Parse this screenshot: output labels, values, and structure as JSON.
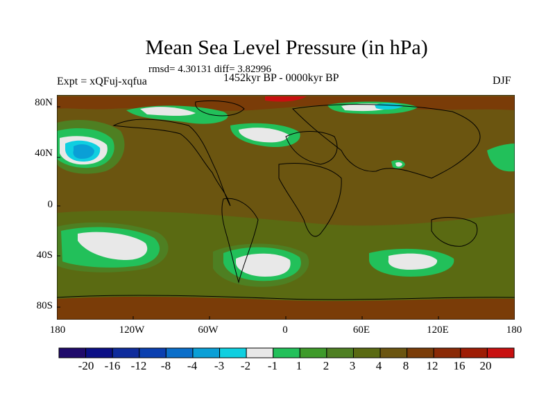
{
  "title": "Mean Sea Level Pressure (in hPa)",
  "stats": "rmsd= 4.30131 diff= 3.82996",
  "experiment": "Expt = xQFuj-xqfua",
  "period": "1452kyr BP - 0000kyr BP",
  "season": "DJF",
  "lat_labels": [
    "80N",
    "40N",
    "0",
    "40S",
    "80S"
  ],
  "lon_labels": [
    "180",
    "120W",
    "60W",
    "0",
    "60E",
    "120E",
    "180"
  ],
  "colorbar": {
    "colors": [
      "#1f0a6b",
      "#0b0f86",
      "#0e2b9c",
      "#0a3fb0",
      "#0a6ec9",
      "#0a9fd6",
      "#0fcfe0",
      "#e8e8e8",
      "#22c05a",
      "#3e9a2a",
      "#4e7f22",
      "#5a6a12",
      "#6b5510",
      "#7a3c08",
      "#8a2a06",
      "#9e1c04",
      "#c81010"
    ],
    "labels": [
      "-20",
      "-16",
      "-12",
      "-8",
      "-4",
      "-3",
      "-2",
      "-1",
      "1",
      "2",
      "3",
      "4",
      "8",
      "12",
      "16",
      "20"
    ]
  },
  "field_colors": {
    "background": "#6b5510",
    "band_8_12": "#7a3c08",
    "band_3_4": "#5a6a12",
    "band_2_3": "#4e7f22",
    "band_1_2": "#22c05a",
    "band_m1_1": "#e8e8e8",
    "band_m3_m2": "#0fcfe0",
    "band_m4_m3": "#0a9fd6",
    "band_16_20": "#c81010"
  }
}
